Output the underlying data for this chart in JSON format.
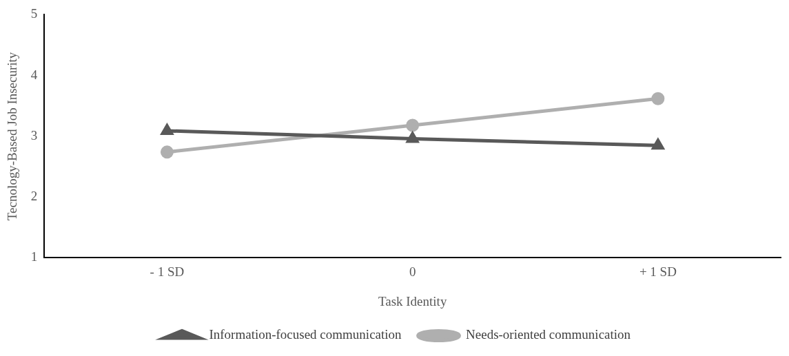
{
  "chart_data": {
    "type": "line",
    "xlabel": "Task Identity",
    "ylabel": "Tecnology-Based Job Insecurity",
    "categories": [
      "- 1 SD",
      "0",
      "+ 1 SD"
    ],
    "ylim": [
      1,
      5
    ],
    "yticks": [
      1,
      2,
      3,
      4,
      5
    ],
    "grid": false,
    "legend": "bottom",
    "series": [
      {
        "name": "Information-focused communication",
        "color": "#595959",
        "marker": "triangle",
        "values": [
          3.09,
          2.96,
          2.85
        ]
      },
      {
        "name": "Needs-oriented communication",
        "color": "#afafaf",
        "marker": "circle",
        "values": [
          2.74,
          3.18,
          3.62
        ]
      }
    ]
  }
}
